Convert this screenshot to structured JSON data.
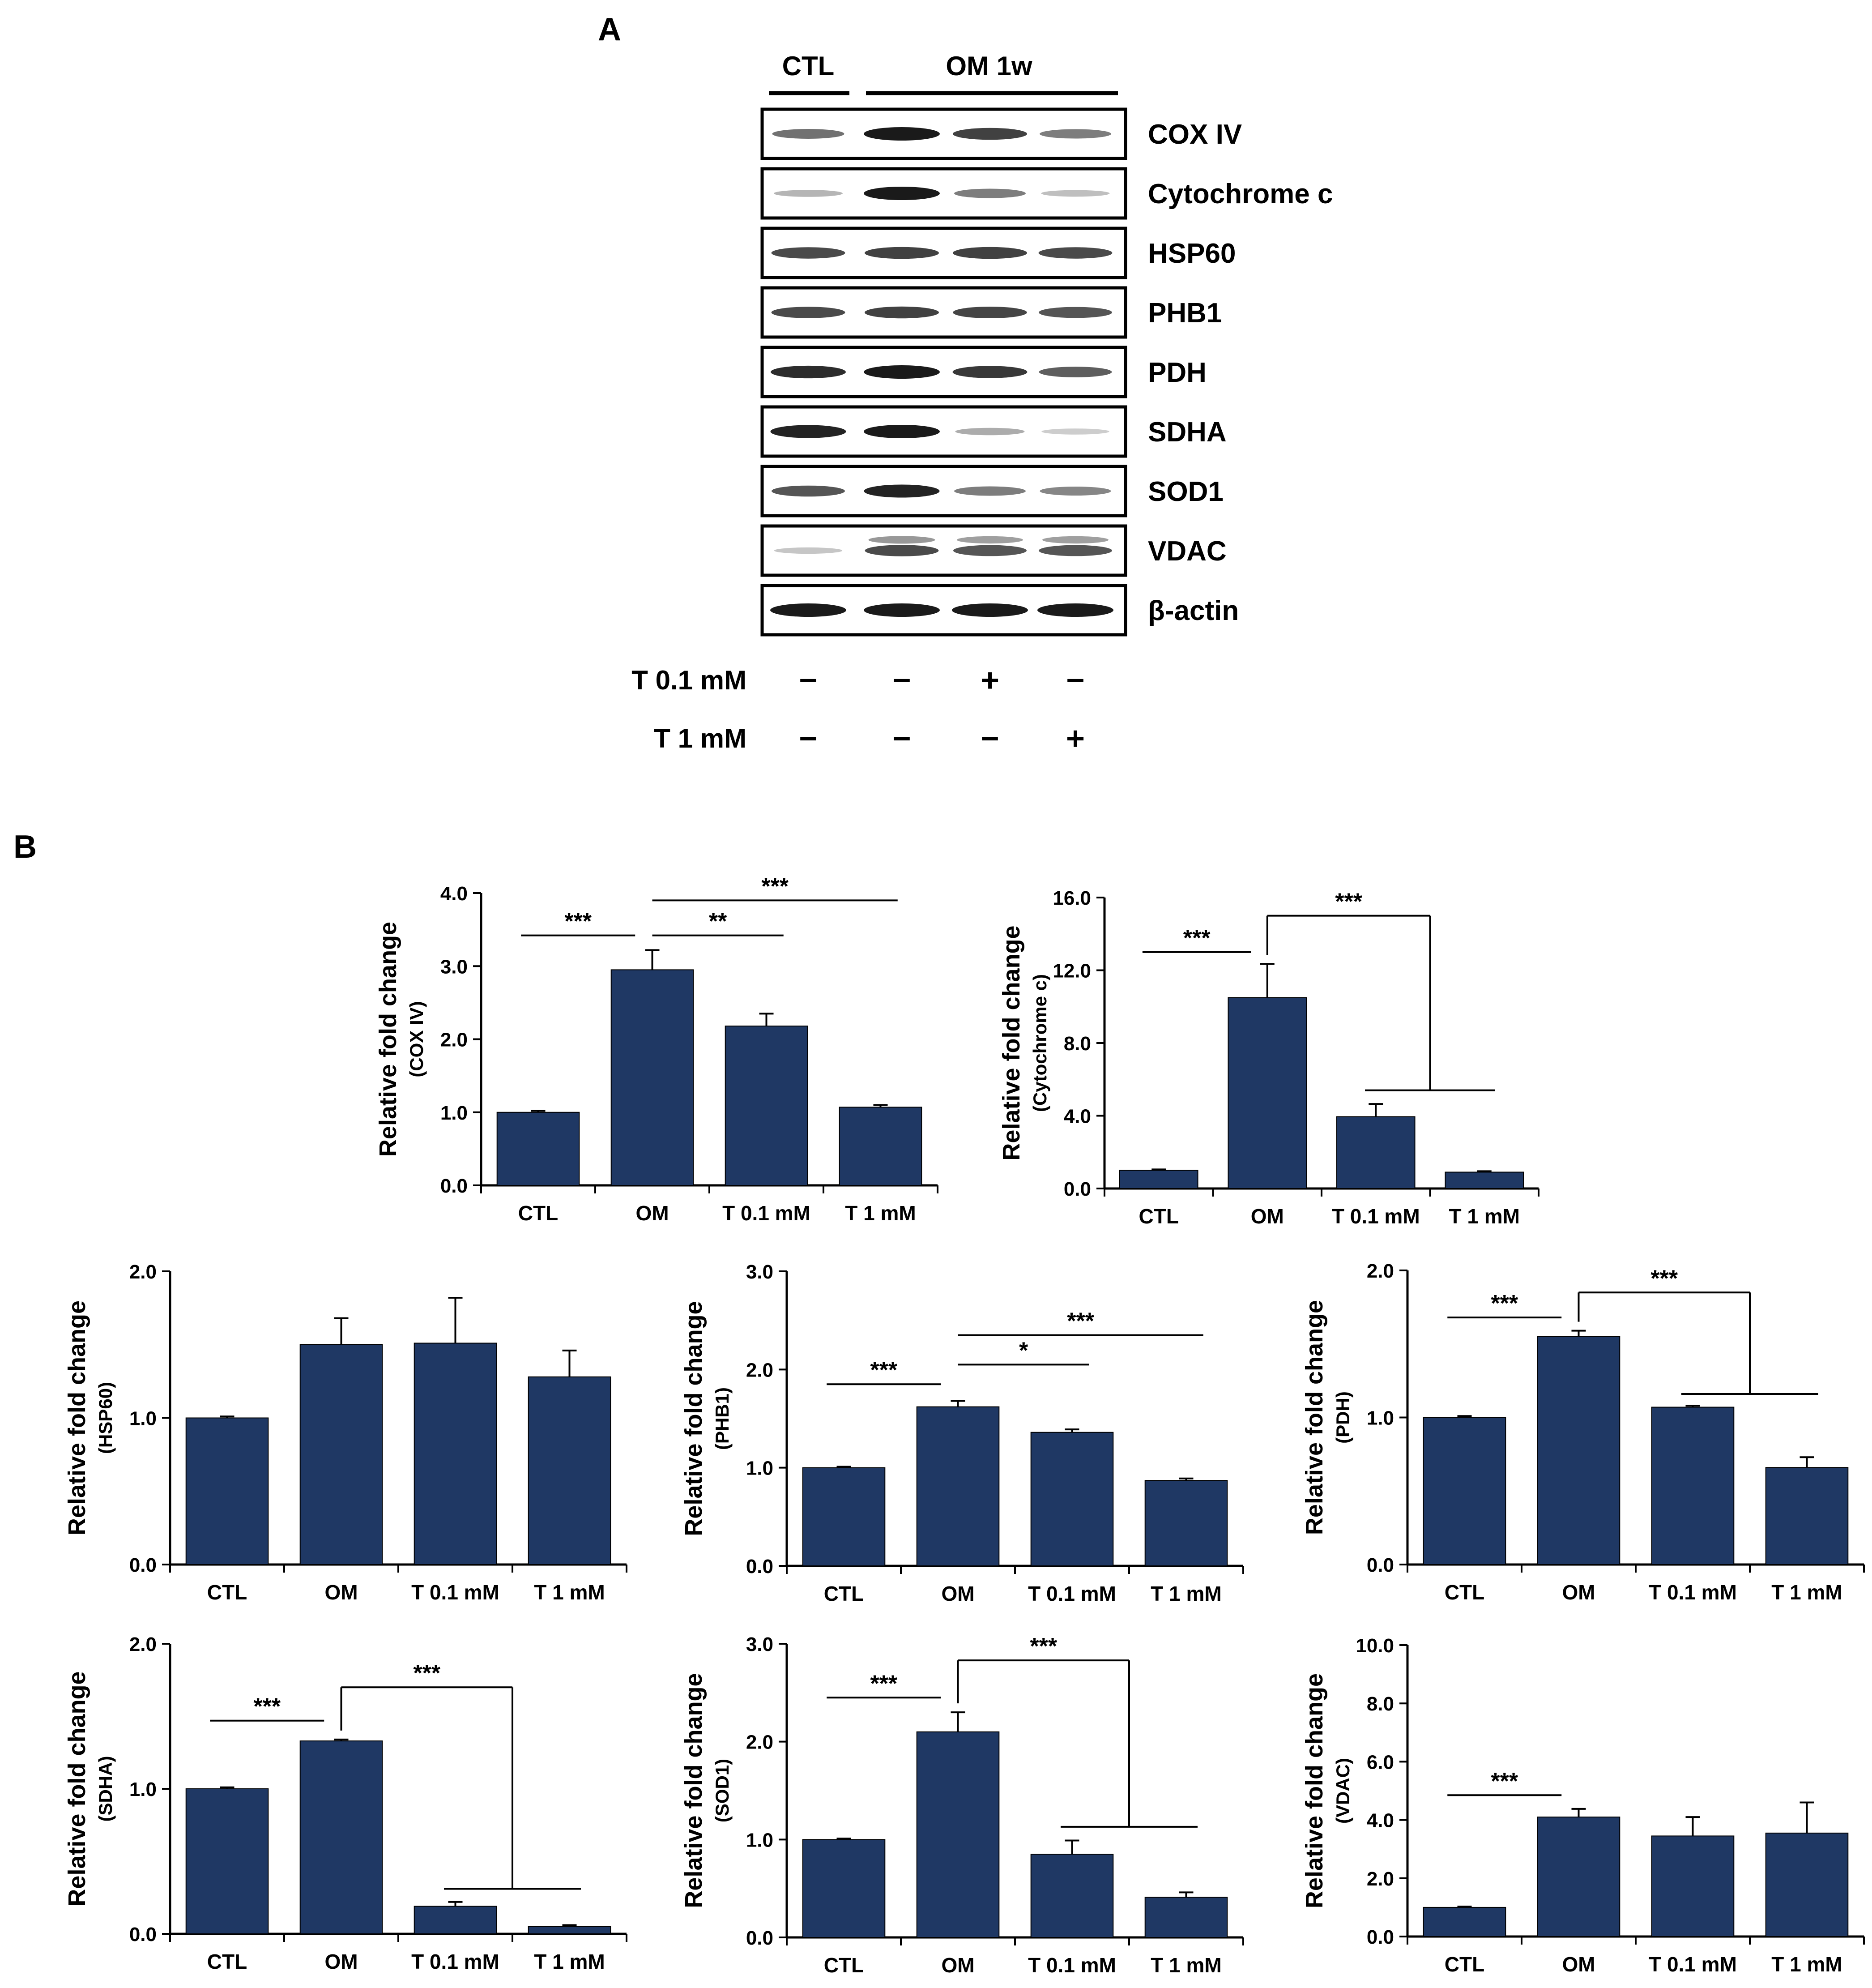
{
  "panel_a": {
    "label": "A",
    "group_labels": [
      "CTL",
      "OM 1w"
    ],
    "proteins": [
      "COX IV",
      "Cytochrome c",
      "HSP60",
      "PHB1",
      "PDH",
      "SDHA",
      "SOD1",
      "VDAC",
      "β-actin"
    ],
    "band_intensity": [
      [
        0.55,
        1.0,
        0.8,
        0.5
      ],
      [
        0.2,
        1.0,
        0.5,
        0.15
      ],
      [
        0.75,
        0.8,
        0.8,
        0.75
      ],
      [
        0.75,
        0.8,
        0.78,
        0.7
      ],
      [
        0.9,
        1.0,
        0.85,
        0.65
      ],
      [
        0.95,
        1.0,
        0.25,
        0.08
      ],
      [
        0.7,
        0.95,
        0.5,
        0.45
      ],
      [
        0.12,
        0.75,
        0.7,
        0.7
      ],
      [
        1.0,
        1.0,
        1.0,
        1.0
      ]
    ],
    "treatment_rows": [
      {
        "label": "T 0.1 mM",
        "marks": [
          "-",
          "-",
          "+",
          "-"
        ]
      },
      {
        "label": "T 1 mM",
        "marks": [
          "-",
          "-",
          "-",
          "+"
        ]
      }
    ]
  },
  "panel_b": {
    "label": "B"
  },
  "colors": {
    "bar": "#1f3864",
    "ink": "#000000",
    "band": "#1a1a1a"
  },
  "chart_data": [
    {
      "type": "bar",
      "ylabel": "Relative fold change",
      "ylabel2": "(COX IV)",
      "categories": [
        "CTL",
        "OM",
        "T 0.1 mM",
        "T 1 mM"
      ],
      "values": [
        1.0,
        2.95,
        2.18,
        1.07
      ],
      "errors": [
        0.02,
        0.27,
        0.17,
        0.03
      ],
      "ylim": [
        0,
        4
      ],
      "yticks": [
        "0.0",
        "1.0",
        "2.0",
        "3.0",
        "4.0"
      ],
      "significance": [
        {
          "from": 0,
          "to": 1,
          "label": "***",
          "y": 3.42
        },
        {
          "from": 1,
          "to": 2,
          "label": "**",
          "y": 3.42
        },
        {
          "from": 1,
          "to": 3,
          "label": "***",
          "y": 3.9
        }
      ]
    },
    {
      "type": "bar",
      "ylabel": "Relative fold change",
      "ylabel2": "(Cytochrome c)",
      "categories": [
        "CTL",
        "OM",
        "T 0.1 mM",
        "T 1 mM"
      ],
      "values": [
        1.0,
        10.5,
        3.95,
        0.9
      ],
      "errors": [
        0.05,
        1.85,
        0.7,
        0.05
      ],
      "ylim": [
        0,
        16
      ],
      "yticks": [
        "0.0",
        "4.0",
        "8.0",
        "12.0",
        "16.0"
      ],
      "significance": [
        {
          "from": 0,
          "to": 1,
          "label": "***",
          "y": 13.0
        },
        {
          "from": 1,
          "to": [
            2,
            3
          ],
          "label": "***",
          "y": 15.0,
          "bottom": 5.4
        }
      ]
    },
    {
      "type": "bar",
      "ylabel": "Relative fold change",
      "ylabel2": "(HSP60)",
      "categories": [
        "CTL",
        "OM",
        "T 0.1 mM",
        "T 1 mM"
      ],
      "values": [
        1.0,
        1.5,
        1.51,
        1.28
      ],
      "errors": [
        0.01,
        0.18,
        0.31,
        0.18
      ],
      "ylim": [
        0,
        2
      ],
      "yticks": [
        "0.0",
        "1.0",
        "2.0"
      ],
      "significance": []
    },
    {
      "type": "bar",
      "ylabel": "Relative fold change",
      "ylabel2": "(PHB1)",
      "categories": [
        "CTL",
        "OM",
        "T 0.1 mM",
        "T 1 mM"
      ],
      "values": [
        1.0,
        1.62,
        1.36,
        0.87
      ],
      "errors": [
        0.01,
        0.06,
        0.03,
        0.02
      ],
      "ylim": [
        0,
        3
      ],
      "yticks": [
        "0.0",
        "1.0",
        "2.0",
        "3.0"
      ],
      "significance": [
        {
          "from": 0,
          "to": 1,
          "label": "***",
          "y": 1.85
        },
        {
          "from": 1,
          "to": 2,
          "label": "*",
          "y": 2.05
        },
        {
          "from": 1,
          "to": 3,
          "label": "***",
          "y": 2.35
        }
      ]
    },
    {
      "type": "bar",
      "ylabel": "Relative fold change",
      "ylabel2": "(PDH)",
      "categories": [
        "CTL",
        "OM",
        "T 0.1 mM",
        "T 1 mM"
      ],
      "values": [
        1.0,
        1.55,
        1.07,
        0.66
      ],
      "errors": [
        0.01,
        0.04,
        0.01,
        0.07
      ],
      "ylim": [
        0,
        2
      ],
      "yticks": [
        "0.0",
        "1.0",
        "2.0"
      ],
      "significance": [
        {
          "from": 0,
          "to": 1,
          "label": "***",
          "y": 1.68
        },
        {
          "from": 1,
          "to": [
            2,
            3
          ],
          "label": "***",
          "y": 1.85,
          "bottom": 1.16
        }
      ]
    },
    {
      "type": "bar",
      "ylabel": "Relative fold change",
      "ylabel2": "(SDHA)",
      "categories": [
        "CTL",
        "OM",
        "T 0.1 mM",
        "T 1 mM"
      ],
      "values": [
        1.0,
        1.33,
        0.19,
        0.05
      ],
      "errors": [
        0.01,
        0.01,
        0.03,
        0.01
      ],
      "ylim": [
        0,
        2
      ],
      "yticks": [
        "0.0",
        "1.0",
        "2.0"
      ],
      "significance": [
        {
          "from": 0,
          "to": 1,
          "label": "***",
          "y": 1.47
        },
        {
          "from": 1,
          "to": [
            2,
            3
          ],
          "label": "***",
          "y": 1.7,
          "bottom": 0.31
        }
      ]
    },
    {
      "type": "bar",
      "ylabel": "Relative fold change",
      "ylabel2": "(SOD1)",
      "categories": [
        "CTL",
        "OM",
        "T 0.1 mM",
        "T 1 mM"
      ],
      "values": [
        1.0,
        2.1,
        0.85,
        0.41
      ],
      "errors": [
        0.01,
        0.2,
        0.14,
        0.05
      ],
      "ylim": [
        0,
        3
      ],
      "yticks": [
        "0.0",
        "1.0",
        "2.0",
        "3.0"
      ],
      "significance": [
        {
          "from": 0,
          "to": 1,
          "label": "***",
          "y": 2.45
        },
        {
          "from": 1,
          "to": [
            2,
            3
          ],
          "label": "***",
          "y": 2.83,
          "bottom": 1.13
        }
      ]
    },
    {
      "type": "bar",
      "ylabel": "Relative fold change",
      "ylabel2": "(VDAC)",
      "categories": [
        "CTL",
        "OM",
        "T 0.1 mM",
        "T 1 mM"
      ],
      "values": [
        1.0,
        4.1,
        3.45,
        3.55
      ],
      "errors": [
        0.03,
        0.28,
        0.65,
        1.05
      ],
      "ylim": [
        0,
        10
      ],
      "yticks": [
        "0.0",
        "2.0",
        "4.0",
        "6.0",
        "8.0",
        "10.0"
      ],
      "significance": [
        {
          "from": 0,
          "to": 1,
          "label": "***",
          "y": 4.85
        }
      ]
    }
  ]
}
